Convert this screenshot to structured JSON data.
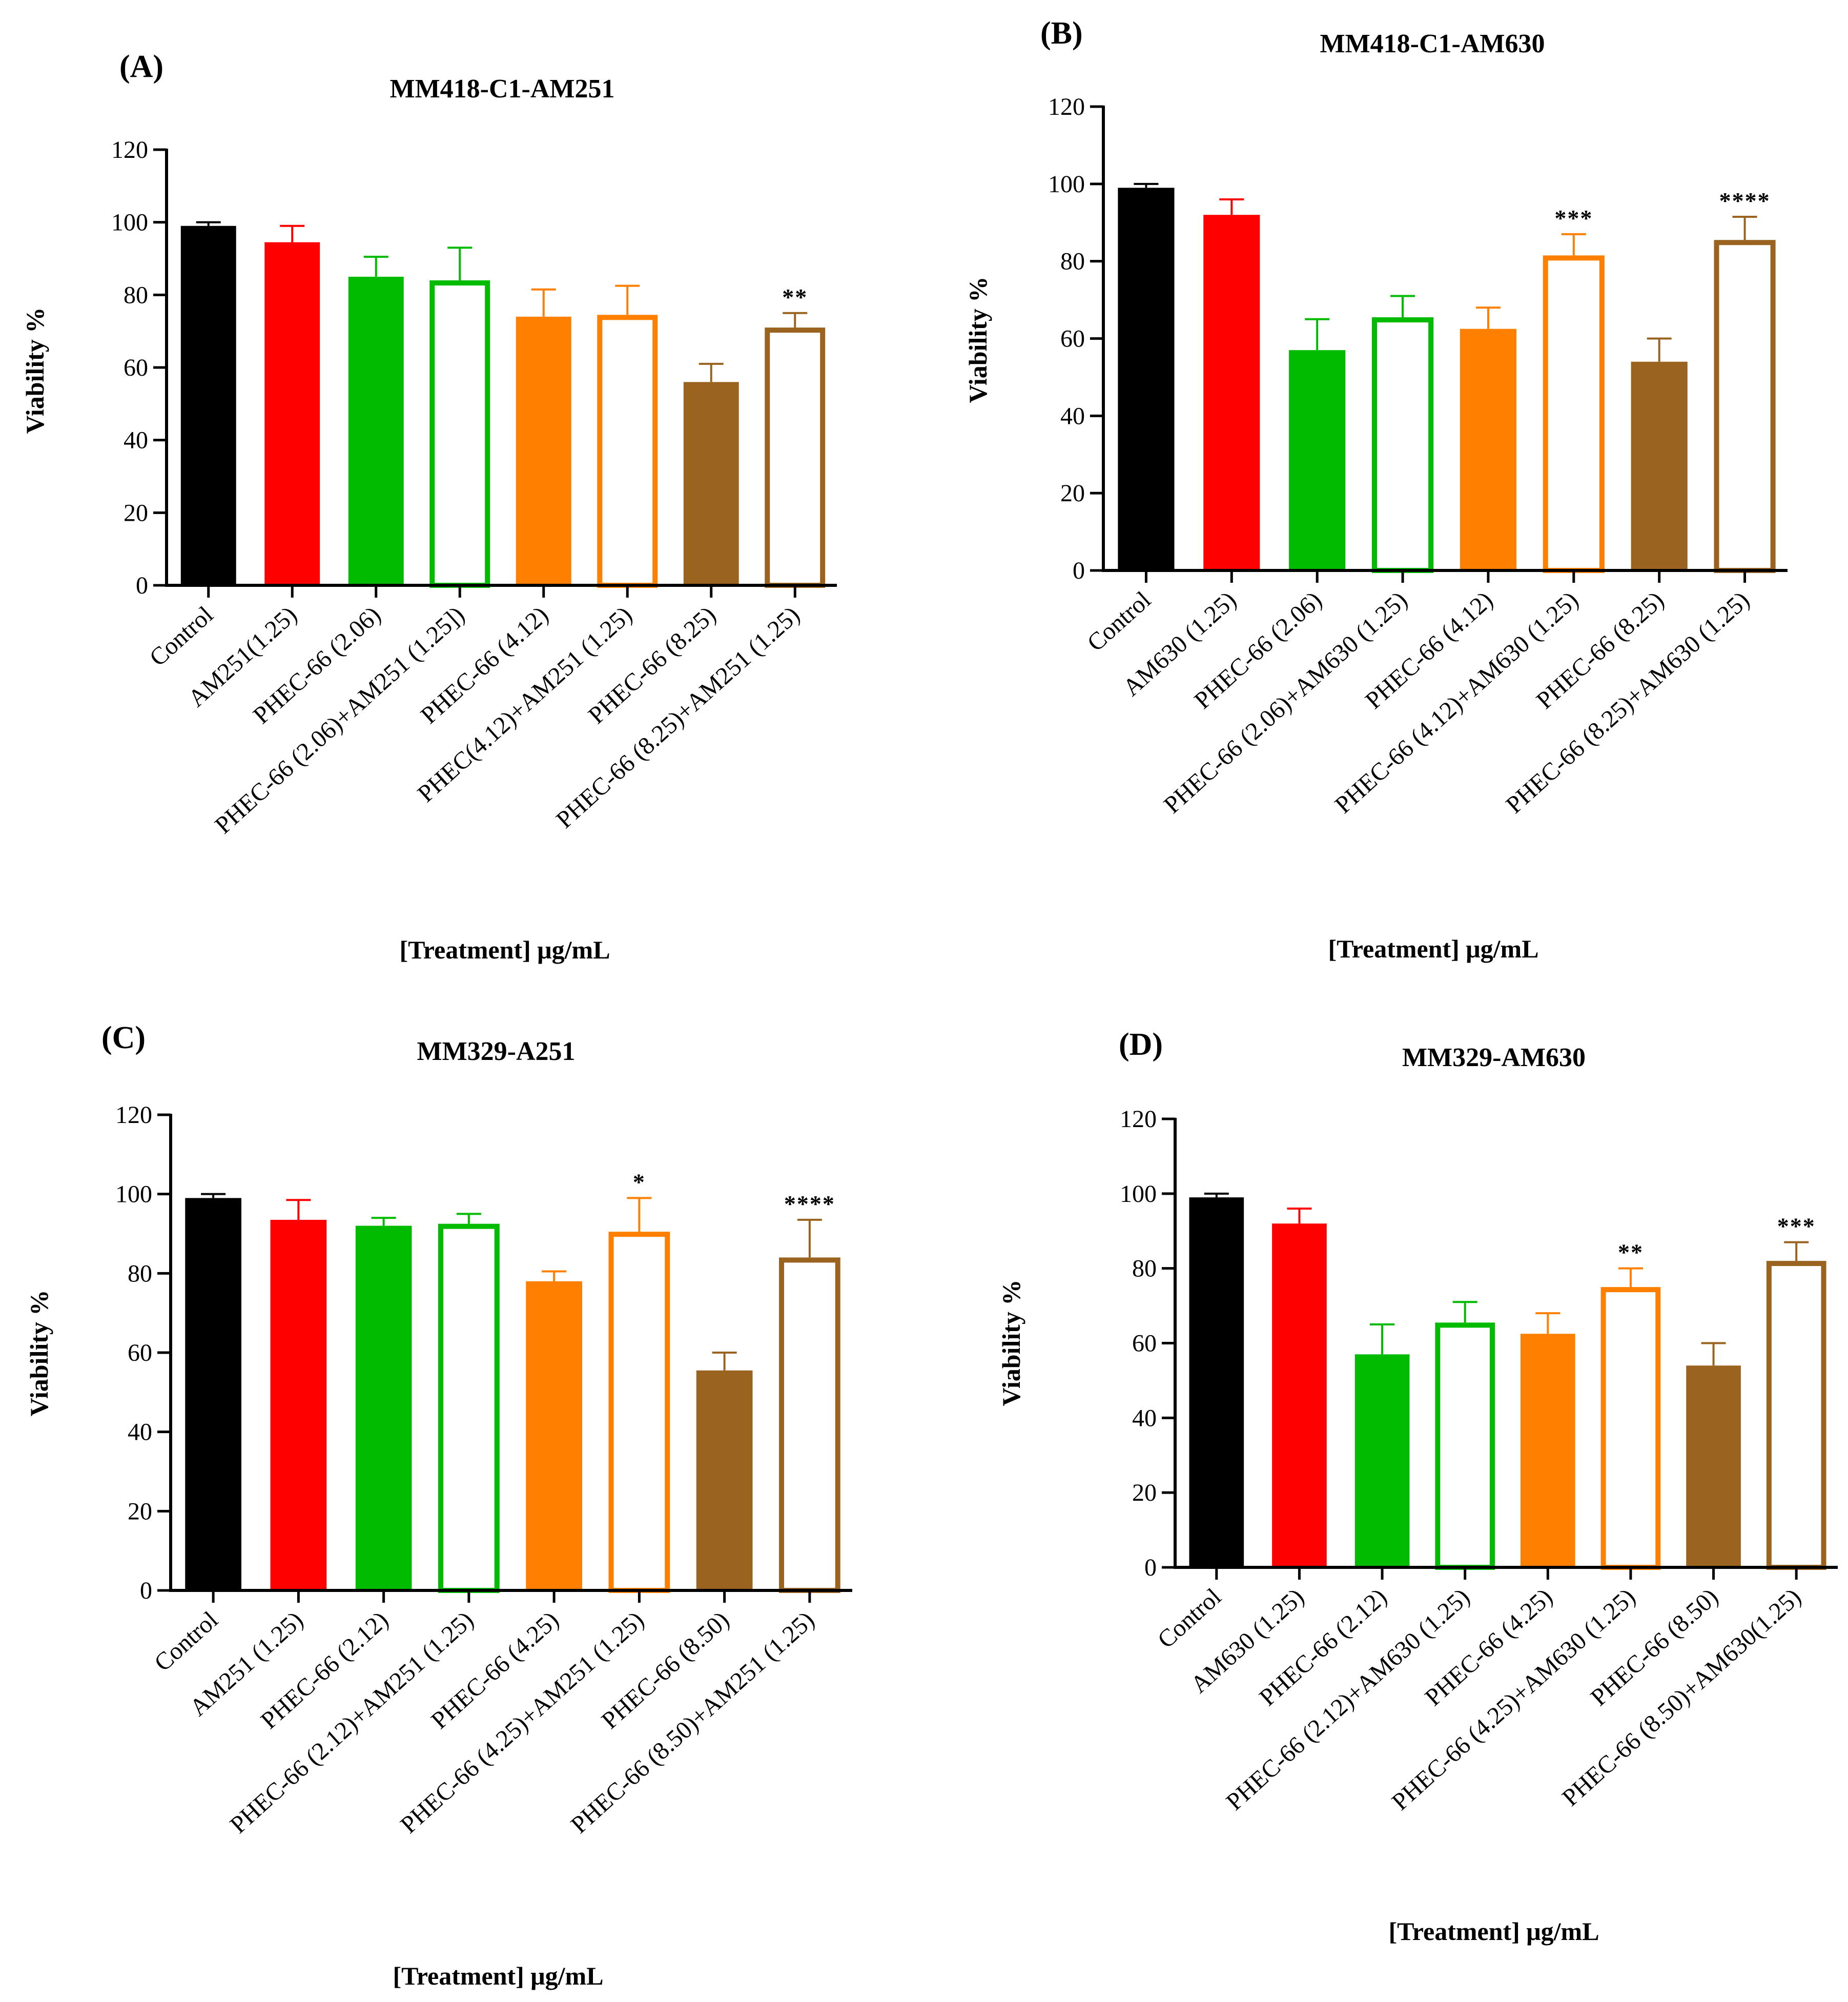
{
  "figure": {
    "background": "#ffffff",
    "colors": {
      "black": "#000000",
      "red": "#ff0000",
      "green": "#00bb00",
      "orange": "#ff7f00",
      "brown": "#9a6420"
    }
  },
  "chart_data": [
    {
      "panel": "(A)",
      "type": "bar",
      "title": "MM418-C1-AM251",
      "xlabel": "[Treatment] μg/mL",
      "ylabel": "Viability %",
      "ylim": [
        0,
        120
      ],
      "yticks": [
        0,
        20,
        40,
        60,
        80,
        100,
        120
      ],
      "categories": [
        "Control",
        "AM251(1.25)",
        "PHEC-66 (2.06)",
        "PHEC-66 (2.06)+AM251 (1.25])",
        "PHEC-66 (4.12)",
        "PHEC(4.12)+AM251 (1.25)",
        "PHEC-66 (8.25)",
        "PHEC-66 (8.25)+AM251 (1.25)"
      ],
      "values": [
        99,
        94.5,
        85,
        84,
        74,
        74.5,
        56,
        71
      ],
      "errors": [
        1,
        4.5,
        5.5,
        9,
        7.5,
        8,
        5,
        4
      ],
      "colors": [
        "#000000",
        "#ff0000",
        "#00bb00",
        "#00bb00",
        "#ff7f00",
        "#ff7f00",
        "#9a6420",
        "#9a6420"
      ],
      "filled": [
        true,
        true,
        true,
        false,
        true,
        false,
        true,
        false
      ],
      "significance": [
        "",
        "",
        "",
        "",
        "",
        "",
        "",
        "**"
      ]
    },
    {
      "panel": "(B)",
      "type": "bar",
      "title": "MM418-C1-AM630",
      "xlabel": "[Treatment] μg/mL",
      "ylabel": "Viability %",
      "ylim": [
        0,
        120
      ],
      "yticks": [
        0,
        20,
        40,
        60,
        80,
        100,
        120
      ],
      "categories": [
        "Control",
        "AM630 (1.25)",
        "PHEC-66 (2.06)",
        "PHEC-66 (2.06)+AM630 (1.25)",
        "PHEC-66 (4.12)",
        "PHEC-66 (4.12)+AM630 (1.25)",
        "PHEC-66 (8.25)",
        "PHEC-66 (8.25)+AM630 (1.25)"
      ],
      "values": [
        99,
        92,
        57,
        65.5,
        62.5,
        81.5,
        54,
        85.5
      ],
      "errors": [
        1,
        4,
        8,
        5.5,
        5.5,
        5.5,
        6,
        6
      ],
      "colors": [
        "#000000",
        "#ff0000",
        "#00bb00",
        "#00bb00",
        "#ff7f00",
        "#ff7f00",
        "#9a6420",
        "#9a6420"
      ],
      "filled": [
        true,
        true,
        true,
        false,
        true,
        false,
        true,
        false
      ],
      "significance": [
        "",
        "",
        "",
        "",
        "",
        "***",
        "",
        "****"
      ]
    },
    {
      "panel": "(C)",
      "type": "bar",
      "title": "MM329-A251",
      "xlabel": "[Treatment] μg/mL",
      "ylabel": "Viability %",
      "ylim": [
        0,
        120
      ],
      "yticks": [
        0,
        20,
        40,
        60,
        80,
        100,
        120
      ],
      "categories": [
        "Control",
        "AM251 (1.25)",
        "PHEC-66 (2.12)",
        "PHEC-66 (2.12)+AM251 (1.25)",
        "PHEC-66 (4.25)",
        "PHEC-66 (4.25)+AM251 (1.25)",
        "PHEC-66 (8.50)",
        "PHEC-66 (8.50)+AM251 (1.25)"
      ],
      "values": [
        99,
        93.5,
        92,
        92.5,
        78,
        90.5,
        55.5,
        84
      ],
      "errors": [
        1,
        5,
        2,
        2.5,
        2.5,
        8.5,
        4.5,
        9.5
      ],
      "colors": [
        "#000000",
        "#ff0000",
        "#00bb00",
        "#00bb00",
        "#ff7f00",
        "#ff7f00",
        "#9a6420",
        "#9a6420"
      ],
      "filled": [
        true,
        true,
        true,
        false,
        true,
        false,
        true,
        false
      ],
      "significance": [
        "",
        "",
        "",
        "",
        "",
        "*",
        "",
        "****"
      ]
    },
    {
      "panel": "(D)",
      "type": "bar",
      "title": "MM329-AM630",
      "xlabel": "[Treatment] μg/mL",
      "ylabel": "Viability %",
      "ylim": [
        0,
        120
      ],
      "yticks": [
        0,
        20,
        40,
        60,
        80,
        100,
        120
      ],
      "categories": [
        "Control",
        "AM630 (1.25)",
        "PHEC-66 (2.12)",
        "PHEC-66 (2.12)+AM630 (1.25)",
        "PHEC-66 (4.25)",
        "PHEC-66 (4.25)+AM630 (1.25)",
        "PHEC-66 (8.50)",
        "PHEC-66 (8.50)+AM630(1.25)"
      ],
      "values": [
        99,
        92,
        57,
        65.5,
        62.5,
        75,
        54,
        82
      ],
      "errors": [
        1,
        4,
        8,
        5.5,
        5.5,
        5,
        6,
        5
      ],
      "colors": [
        "#000000",
        "#ff0000",
        "#00bb00",
        "#00bb00",
        "#ff7f00",
        "#ff7f00",
        "#9a6420",
        "#9a6420"
      ],
      "filled": [
        true,
        true,
        true,
        false,
        true,
        false,
        true,
        false
      ],
      "significance": [
        "",
        "",
        "",
        "",
        "",
        "**",
        "",
        "***"
      ]
    }
  ]
}
